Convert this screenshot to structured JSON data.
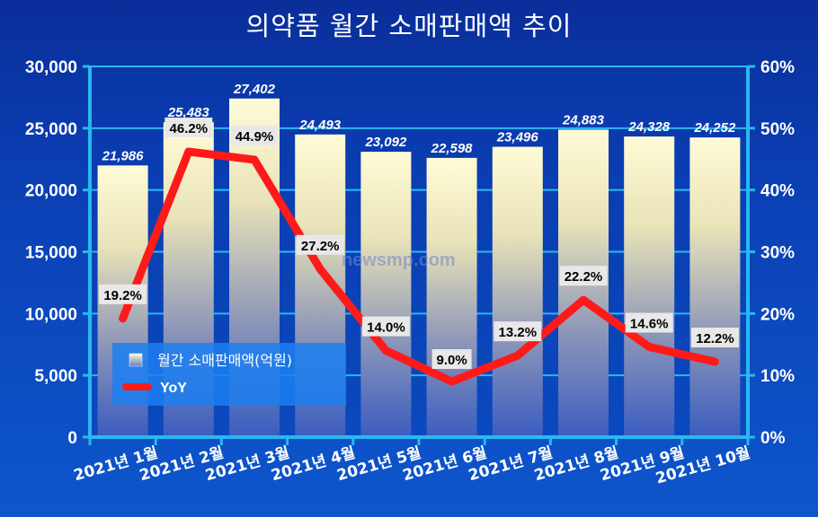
{
  "title": "의약품 월간 소매판매액 추이",
  "watermark": "newsmp.com",
  "colors": {
    "background": "#0b3fb4",
    "axis": "#29b8f0",
    "bar_top": "#fffbd8",
    "bar_bottom": "#3a5cc2",
    "line": "#ff1a1a",
    "label_bg": "#e8e8e8"
  },
  "chart_data": {
    "type": "bar+line",
    "categories": [
      "2021년 1월",
      "2021년 2월",
      "2021년 3월",
      "2021년 4월",
      "2021년 5월",
      "2021년 6월",
      "2021년 7월",
      "2021년 8월",
      "2021년 9월",
      "2021년 10월"
    ],
    "series": [
      {
        "name": "월간 소매판매액(억원)",
        "type": "bar",
        "axis": "left",
        "values": [
          21986,
          25483,
          27402,
          24493,
          23092,
          22598,
          23496,
          24883,
          24328,
          24252
        ],
        "labels": [
          "21,986",
          "25,483",
          "27,402",
          "24,493",
          "23,092",
          "22,598",
          "23,496",
          "24,883",
          "24,328",
          "24,252"
        ]
      },
      {
        "name": "YoY",
        "type": "line",
        "axis": "right",
        "values": [
          19.2,
          46.2,
          44.9,
          27.2,
          14.0,
          9.0,
          13.2,
          22.2,
          14.6,
          12.2
        ],
        "labels": [
          "19.2%",
          "46.2%",
          "44.9%",
          "27.2%",
          "14.0%",
          "9.0%",
          "13.2%",
          "22.2%",
          "14.6%",
          "12.2%"
        ]
      }
    ],
    "y_left": {
      "ylim": [
        0,
        30000
      ],
      "ticks": [
        "0",
        "5,000",
        "10,000",
        "15,000",
        "20,000",
        "25,000",
        "30,000"
      ]
    },
    "y_right": {
      "ylim": [
        0,
        60
      ],
      "ticks": [
        "0%",
        "10%",
        "20%",
        "30%",
        "40%",
        "50%",
        "60%"
      ]
    },
    "grid": true,
    "legend_position": "bottom-left"
  }
}
